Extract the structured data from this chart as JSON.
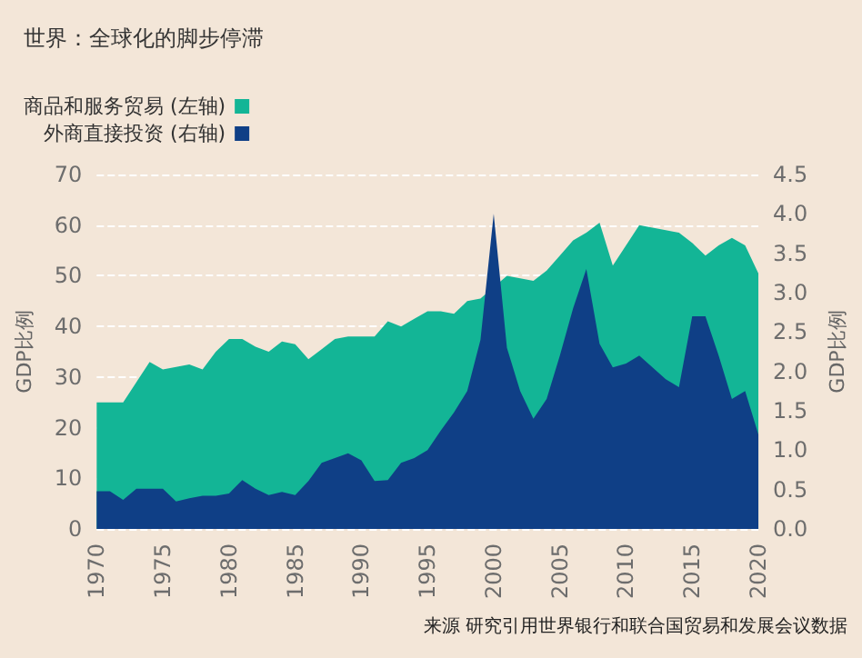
{
  "chart_data": {
    "type": "area",
    "title": "世界：全球化的脚步停滞",
    "ylabel": "GDP比例",
    "y2label": "GDP比例",
    "x": [
      1970,
      1971,
      1972,
      1973,
      1974,
      1975,
      1976,
      1977,
      1978,
      1979,
      1980,
      1981,
      1982,
      1983,
      1984,
      1985,
      1986,
      1987,
      1988,
      1989,
      1990,
      1991,
      1992,
      1993,
      1994,
      1995,
      1996,
      1997,
      1998,
      1999,
      2000,
      2001,
      2002,
      2003,
      2004,
      2005,
      2006,
      2007,
      2008,
      2009,
      2010,
      2011,
      2012,
      2013,
      2014,
      2015,
      2016,
      2017,
      2018,
      2019,
      2020
    ],
    "series": [
      {
        "name": "商品和服务贸易 (左轴)",
        "color": "#13b596",
        "values": [
          25,
          25,
          25,
          29,
          33,
          31.5,
          32,
          32.5,
          31.5,
          35,
          37.5,
          37.5,
          36,
          35,
          37,
          36.5,
          33.5,
          35.5,
          37.5,
          38,
          38,
          38,
          41,
          40,
          41.5,
          43,
          43,
          42.5,
          45,
          45.5,
          null,
          50,
          49.5,
          49,
          51,
          54,
          57,
          58.5,
          60.5,
          52,
          56,
          60,
          59.5,
          59,
          58.5,
          56.5,
          54,
          56,
          57.5,
          56,
          50.5
        ]
      },
      {
        "name": "外商直接投资 (右轴)",
        "color": "#0f3f86",
        "axis": "y2",
        "values": [
          0.48,
          0.48,
          0.37,
          0.51,
          0.51,
          0.51,
          0.35,
          0.39,
          0.42,
          0.42,
          0.45,
          0.62,
          0.51,
          0.43,
          0.47,
          0.43,
          0.61,
          0.84,
          0.9,
          0.96,
          0.87,
          0.61,
          0.62,
          0.84,
          0.9,
          1.0,
          1.25,
          1.48,
          1.75,
          2.4,
          4.0,
          2.3,
          1.75,
          1.4,
          1.65,
          2.2,
          2.8,
          3.3,
          2.35,
          2.05,
          2.1,
          2.2,
          2.05,
          1.9,
          1.8,
          2.7,
          2.7,
          2.2,
          1.65,
          1.75,
          1.2
        ]
      }
    ],
    "xlim": [
      1970,
      2020
    ],
    "xticks": [
      1970,
      1975,
      1980,
      1985,
      1990,
      1995,
      2000,
      2005,
      2010,
      2015,
      2020
    ],
    "ylim": [
      0,
      70
    ],
    "yticks": [
      0,
      10,
      20,
      30,
      40,
      50,
      60,
      70
    ],
    "y2lim": [
      0,
      4.5
    ],
    "y2ticks": [
      {
        "value": 0,
        "label": "0.0"
      },
      {
        "value": 0.5,
        "label": "0.5"
      },
      {
        "value": 1,
        "label": "1.0"
      },
      {
        "value": 1.5,
        "label": "1.5"
      },
      {
        "value": 2,
        "label": "2.0"
      },
      {
        "value": 2.5,
        "label": "2.5"
      },
      {
        "value": 3,
        "label": "3.0"
      },
      {
        "value": 3.5,
        "label": "3.5"
      },
      {
        "value": 4,
        "label": "4.0"
      },
      {
        "value": 4.5,
        "label": "4.5"
      }
    ],
    "grid": "y",
    "legend": "top left",
    "annotations": [
      "来源 研究引用世界银行和联合国贸易和发展会议数据"
    ]
  }
}
